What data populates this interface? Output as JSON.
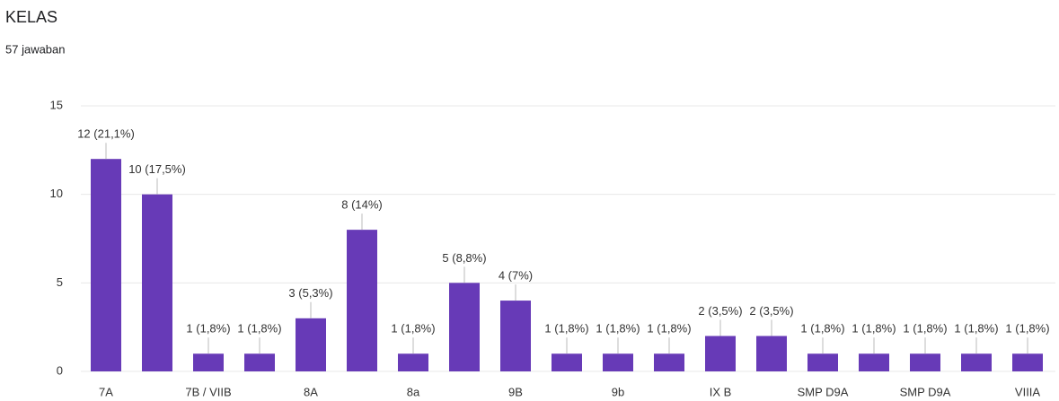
{
  "chart_data": {
    "type": "bar",
    "title": "KELAS",
    "subtitle": "57 jawaban",
    "categories": [
      "7A",
      null,
      "7B / VIIB",
      null,
      "8A",
      null,
      "8a",
      null,
      "9B",
      null,
      "9b",
      null,
      "IX B",
      null,
      "SMP D9A",
      null,
      "SMP D9A",
      null,
      "VIIIA"
    ],
    "values": [
      12,
      10,
      1,
      1,
      3,
      8,
      1,
      5,
      4,
      1,
      1,
      1,
      2,
      2,
      1,
      1,
      1,
      1,
      1
    ],
    "value_labels": [
      "12 (21,1%)",
      "10 (17,5%)",
      "1 (1,8%)",
      "1 (1,8%)",
      "3 (5,3%)",
      "8 (14%)",
      "1 (1,8%)",
      "5 (8,8%)",
      "4 (7%)",
      "1 (1,8%)",
      "1 (1,8%)",
      "1 (1,8%)",
      "2 (3,5%)",
      "2 (3,5%)",
      "1 (1,8%)",
      "1 (1,8%)",
      "1 (1,8%)",
      "1 (1,8%)",
      "1 (1,8%)"
    ],
    "color": "#673ab7",
    "ylim": [
      0,
      15
    ],
    "yticks": [
      0,
      5,
      10,
      15
    ],
    "grid": true
  }
}
